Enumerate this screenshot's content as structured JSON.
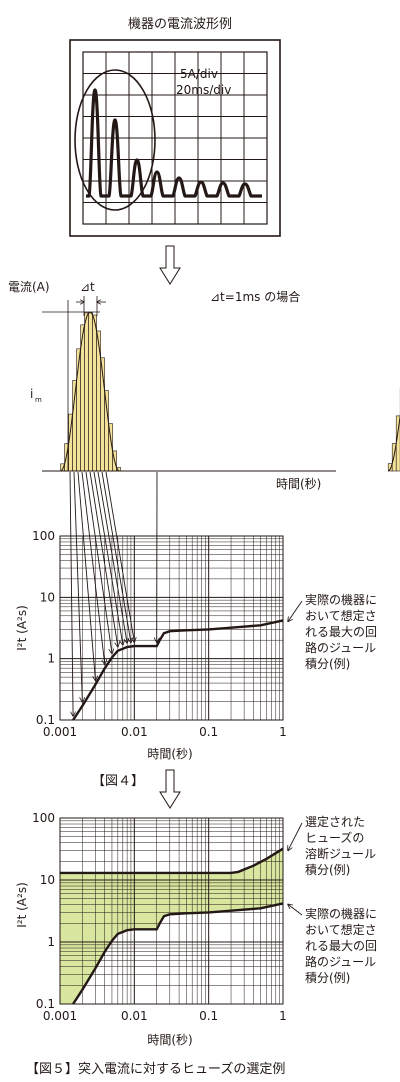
{
  "oscilloscope": {
    "title": "機器の電流波形例",
    "scale_current": "5A/div",
    "scale_time": "20ms/div"
  },
  "pulse_chart": {
    "ylabel": "電流(A)",
    "delta_label": "⊿t",
    "note": "⊿t=1ms の場合",
    "im_label": "i",
    "im_sub": "m",
    "xlabel": "時間(秒)",
    "bar_color": "#f3e29a",
    "pulses": [
      {
        "center_ms": 2.5,
        "height": 1.0,
        "halfwidth": 2.8
      },
      {
        "center_ms": 18,
        "height": 0.7,
        "halfwidth": 2.3
      },
      {
        "center_ms": 32,
        "height": 0.23,
        "halfwidth": 2.2
      }
    ]
  },
  "chart_fig4": {
    "type": "line",
    "ylabel": "I²t (A²s)",
    "xlabel": "時間(秒)",
    "x_ticks": [
      "0.001",
      "0.01",
      "0.1",
      "1"
    ],
    "y_ticks": [
      "100",
      "10",
      "1",
      "0.1"
    ],
    "xlim": [
      0.001,
      1
    ],
    "ylim": [
      0.1,
      100
    ],
    "x_scale": "log",
    "y_scale": "log",
    "annotation": [
      "実際の機器に",
      "おいて想定さ",
      "れる最大の回",
      "路のジュール",
      "積分(例)"
    ],
    "caption": "【図４】",
    "series": [
      {
        "x": [
          0.0015,
          0.002,
          0.003,
          0.004,
          0.005,
          0.006,
          0.008,
          0.01,
          0.015,
          0.02,
          0.022,
          0.025,
          0.03,
          0.05,
          0.1,
          0.2,
          0.5,
          1
        ],
        "y": [
          0.1,
          0.17,
          0.38,
          0.7,
          1.05,
          1.35,
          1.55,
          1.6,
          1.6,
          1.6,
          2.0,
          2.6,
          2.8,
          2.9,
          3.0,
          3.2,
          3.5,
          4.2
        ]
      }
    ]
  },
  "chart_fig5": {
    "type": "area",
    "ylabel": "I²t (A²s)",
    "xlabel": "時間(秒)",
    "x_ticks": [
      "0.001",
      "0.01",
      "0.1",
      "1"
    ],
    "y_ticks": [
      "100",
      "10",
      "1",
      "0.1"
    ],
    "xlim": [
      0.001,
      1
    ],
    "ylim": [
      0.1,
      100
    ],
    "x_scale": "log",
    "y_scale": "log",
    "fill_color": "#d8e6a0",
    "annotation_fuse": [
      "選定された",
      "ヒューズの",
      "溶断ジュール",
      "積分(例)"
    ],
    "annotation_circuit": [
      "実際の機器に",
      "おいて想定さ",
      "れる最大の回",
      "路のジュール",
      "積分(例)"
    ],
    "caption": "【図５】突入電流に対するヒューズの選定例",
    "series": [
      {
        "x": [
          0.001,
          0.1,
          0.2,
          0.25,
          0.4,
          0.6,
          1
        ],
        "y": [
          13,
          13,
          13,
          13.5,
          17,
          22,
          32
        ]
      },
      {
        "x": [
          0.0015,
          0.002,
          0.003,
          0.004,
          0.005,
          0.006,
          0.008,
          0.01,
          0.015,
          0.02,
          0.022,
          0.025,
          0.03,
          0.05,
          0.1,
          0.2,
          0.5,
          1
        ],
        "y": [
          0.1,
          0.17,
          0.38,
          0.7,
          1.05,
          1.35,
          1.55,
          1.6,
          1.6,
          1.6,
          2.0,
          2.6,
          2.8,
          2.9,
          3.0,
          3.2,
          3.5,
          4.2
        ]
      }
    ]
  }
}
